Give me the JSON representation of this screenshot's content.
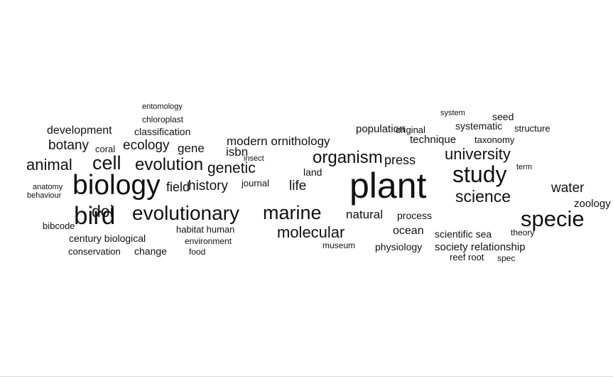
{
  "chart_data": {
    "type": "wordcloud",
    "words": [
      {
        "text": "plant",
        "weight": 48
      },
      {
        "text": "biology",
        "weight": 40
      },
      {
        "text": "bird",
        "weight": 34
      },
      {
        "text": "study",
        "weight": 30
      },
      {
        "text": "specie",
        "weight": 30
      },
      {
        "text": "evolutionary",
        "weight": 27
      },
      {
        "text": "cell",
        "weight": 26
      },
      {
        "text": "marine",
        "weight": 26
      },
      {
        "text": "evolution",
        "weight": 24
      },
      {
        "text": "organism",
        "weight": 23
      },
      {
        "text": "science",
        "weight": 22
      },
      {
        "text": "doi",
        "weight": 22
      },
      {
        "text": "university",
        "weight": 21
      },
      {
        "text": "molecular",
        "weight": 21
      },
      {
        "text": "animal",
        "weight": 21
      },
      {
        "text": "genetic",
        "weight": 20
      },
      {
        "text": "history",
        "weight": 19
      },
      {
        "text": "water",
        "weight": 19
      },
      {
        "text": "ecology",
        "weight": 19
      },
      {
        "text": "botany",
        "weight": 18
      },
      {
        "text": "life",
        "weight": 18
      },
      {
        "text": "press",
        "weight": 18
      },
      {
        "text": "field",
        "weight": 18
      },
      {
        "text": "modern ornithology",
        "weight": 17
      },
      {
        "text": "development",
        "weight": 16
      },
      {
        "text": "natural",
        "weight": 16
      },
      {
        "text": "gene",
        "weight": 16
      },
      {
        "text": "isbn",
        "weight": 16
      },
      {
        "text": "population",
        "weight": 15
      },
      {
        "text": "zoology",
        "weight": 15
      },
      {
        "text": "ocean",
        "weight": 15
      },
      {
        "text": "century biological",
        "weight": 14
      },
      {
        "text": "land",
        "weight": 14
      },
      {
        "text": "society relationship",
        "weight": 14
      },
      {
        "text": "physiology",
        "weight": 14
      },
      {
        "text": "technique",
        "weight": 14
      },
      {
        "text": "process",
        "weight": 14
      },
      {
        "text": "scientific sea",
        "weight": 14
      },
      {
        "text": "change",
        "weight": 14
      },
      {
        "text": "classification",
        "weight": 14
      },
      {
        "text": "structure",
        "weight": 13
      },
      {
        "text": "systematic",
        "weight": 13
      },
      {
        "text": "seed",
        "weight": 13
      },
      {
        "text": "taxonomy",
        "weight": 13
      },
      {
        "text": "original",
        "weight": 13
      },
      {
        "text": "reef root",
        "weight": 13
      },
      {
        "text": "habitat human",
        "weight": 13
      },
      {
        "text": "journal",
        "weight": 13
      },
      {
        "text": "coral",
        "weight": 13
      },
      {
        "text": "chloroplast",
        "weight": 12
      },
      {
        "text": "theory",
        "weight": 12
      },
      {
        "text": "conservation",
        "weight": 12
      },
      {
        "text": "bibcode",
        "weight": 12
      },
      {
        "text": "food",
        "weight": 12
      },
      {
        "text": "environment",
        "weight": 12
      },
      {
        "text": "museum",
        "weight": 12
      },
      {
        "text": "spec",
        "weight": 12
      },
      {
        "text": "anatomy",
        "weight": 11
      },
      {
        "text": "behaviour",
        "weight": 11
      },
      {
        "text": "insect",
        "weight": 11
      },
      {
        "text": "system",
        "weight": 11
      },
      {
        "text": "entomology",
        "weight": 11
      },
      {
        "text": "term",
        "weight": 11
      }
    ]
  }
}
